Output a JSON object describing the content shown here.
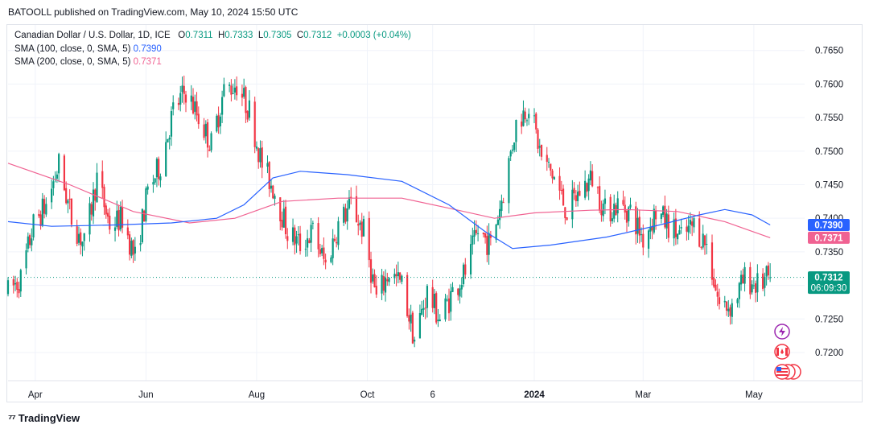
{
  "publisher": "BATOOLL published on TradingView.com, May 10, 2024 15:50 UTC",
  "legend": {
    "symbol": "Canadian Dollar / U.S. Dollar, 1D, ICE",
    "o_label": "O",
    "o": "0.7311",
    "h_label": "H",
    "h": "0.7333",
    "l_label": "L",
    "l": "0.7305",
    "c_label": "C",
    "c": "0.7312",
    "change": "+0.0003 (+0.04%)",
    "sma100_label": "SMA (100, close, 0, SMA, 5)",
    "sma100_value": "0.7390",
    "sma200_label": "SMA (200, close, 0, SMA, 5)",
    "sma200_value": "0.7371"
  },
  "footer": {
    "brand": "TradingView"
  },
  "colors": {
    "up": "#089981",
    "down": "#f23645",
    "sma100": "#2962ff",
    "sma200": "#f06292"
  },
  "chart_data": {
    "type": "candlestick",
    "y_ticks": [
      0.765,
      0.76,
      0.755,
      0.75,
      0.745,
      0.74,
      0.735,
      0.73,
      0.725,
      0.72
    ],
    "y_tick_labels": [
      "0.7650",
      "0.7600",
      "0.7550",
      "0.7500",
      "0.7450",
      "0.7400",
      "0.7350",
      "0.7300",
      "0.7250",
      "0.7200"
    ],
    "ylim": [
      0.7158,
      0.7688
    ],
    "x_ticks": [
      "Apr",
      "Jun",
      "Aug",
      "Oct",
      "6",
      "2024",
      "Mar",
      "May"
    ],
    "x_tick_dates": [
      "2023-04-01",
      "2023-06-01",
      "2023-08-01",
      "2023-10-01",
      "2023-11-06",
      "2024-01-01",
      "2024-03-01",
      "2024-05-01"
    ],
    "xlim": [
      "2023-03-17",
      "2024-05-29"
    ],
    "last_price": {
      "value": 0.7312,
      "label": "0.7312",
      "countdown": "06:09:30"
    },
    "sma100_last": {
      "value": 0.739,
      "label": "0.7390"
    },
    "sma200_last": {
      "value": 0.7371,
      "label": "0.7371"
    },
    "price_path": [
      [
        "2023-03-17",
        0.729
      ],
      [
        "2023-03-24",
        0.731
      ],
      [
        "2023-03-31",
        0.739
      ],
      [
        "2023-04-07",
        0.742
      ],
      [
        "2023-04-14",
        0.748
      ],
      [
        "2023-04-21",
        0.74
      ],
      [
        "2023-04-28",
        0.736
      ],
      [
        "2023-05-05",
        0.746
      ],
      [
        "2023-05-12",
        0.739
      ],
      [
        "2023-05-19",
        0.74
      ],
      [
        "2023-05-26",
        0.734
      ],
      [
        "2023-06-02",
        0.744
      ],
      [
        "2023-06-09",
        0.748
      ],
      [
        "2023-06-16",
        0.756
      ],
      [
        "2023-06-23",
        0.759
      ],
      [
        "2023-06-30",
        0.755
      ],
      [
        "2023-07-07",
        0.751
      ],
      [
        "2023-07-14",
        0.759
      ],
      [
        "2023-07-21",
        0.76
      ],
      [
        "2023-07-28",
        0.756
      ],
      [
        "2023-08-04",
        0.748
      ],
      [
        "2023-08-11",
        0.744
      ],
      [
        "2023-08-18",
        0.738
      ],
      [
        "2023-08-25",
        0.736
      ],
      [
        "2023-09-01",
        0.738
      ],
      [
        "2023-09-08",
        0.733
      ],
      [
        "2023-09-15",
        0.739
      ],
      [
        "2023-09-22",
        0.742
      ],
      [
        "2023-09-29",
        0.738
      ],
      [
        "2023-10-06",
        0.728
      ],
      [
        "2023-10-13",
        0.732
      ],
      [
        "2023-10-20",
        0.73
      ],
      [
        "2023-10-27",
        0.722
      ],
      [
        "2023-11-03",
        0.729
      ],
      [
        "2023-11-10",
        0.725
      ],
      [
        "2023-11-17",
        0.729
      ],
      [
        "2023-11-24",
        0.732
      ],
      [
        "2023-12-01",
        0.738
      ],
      [
        "2023-12-08",
        0.736
      ],
      [
        "2023-12-15",
        0.744
      ],
      [
        "2023-12-22",
        0.754
      ],
      [
        "2023-12-29",
        0.757
      ],
      [
        "2024-01-05",
        0.749
      ],
      [
        "2024-01-12",
        0.746
      ],
      [
        "2024-01-19",
        0.741
      ],
      [
        "2024-01-26",
        0.744
      ],
      [
        "2024-02-02",
        0.746
      ],
      [
        "2024-02-09",
        0.741
      ],
      [
        "2024-02-16",
        0.742
      ],
      [
        "2024-02-23",
        0.741
      ],
      [
        "2024-03-01",
        0.737
      ],
      [
        "2024-03-08",
        0.741
      ],
      [
        "2024-03-15",
        0.739
      ],
      [
        "2024-03-22",
        0.737
      ],
      [
        "2024-03-29",
        0.739
      ],
      [
        "2024-04-05",
        0.736
      ],
      [
        "2024-04-12",
        0.727
      ],
      [
        "2024-04-19",
        0.727
      ],
      [
        "2024-04-26",
        0.731
      ],
      [
        "2024-05-03",
        0.73
      ],
      [
        "2024-05-10",
        0.7312
      ]
    ],
    "sma100_path": [
      [
        "2023-03-17",
        0.7395
      ],
      [
        "2023-04-10",
        0.7388
      ],
      [
        "2023-05-15",
        0.739
      ],
      [
        "2023-06-15",
        0.7393
      ],
      [
        "2023-07-10",
        0.74
      ],
      [
        "2023-07-25",
        0.742
      ],
      [
        "2023-08-10",
        0.746
      ],
      [
        "2023-08-25",
        0.747
      ],
      [
        "2023-09-20",
        0.7465
      ],
      [
        "2023-10-20",
        0.7455
      ],
      [
        "2023-11-15",
        0.742
      ],
      [
        "2023-12-05",
        0.738
      ],
      [
        "2023-12-20",
        0.7355
      ],
      [
        "2024-01-10",
        0.736
      ],
      [
        "2024-02-10",
        0.7372
      ],
      [
        "2024-02-20",
        0.7378
      ],
      [
        "2024-03-10",
        0.739
      ],
      [
        "2024-04-01",
        0.7405
      ],
      [
        "2024-04-15",
        0.7413
      ],
      [
        "2024-04-30",
        0.7405
      ],
      [
        "2024-05-10",
        0.739
      ]
    ],
    "sma200_path": [
      [
        "2023-03-17",
        0.7482
      ],
      [
        "2023-04-20",
        0.745
      ],
      [
        "2023-05-25",
        0.741
      ],
      [
        "2023-06-25",
        0.7393
      ],
      [
        "2023-07-20",
        0.74
      ],
      [
        "2023-08-15",
        0.7425
      ],
      [
        "2023-09-15",
        0.743
      ],
      [
        "2023-10-20",
        0.743
      ],
      [
        "2023-11-15",
        0.7415
      ],
      [
        "2023-12-10",
        0.74
      ],
      [
        "2024-01-01",
        0.7408
      ],
      [
        "2024-02-01",
        0.7412
      ],
      [
        "2024-02-20",
        0.7413
      ],
      [
        "2024-03-20",
        0.741
      ],
      [
        "2024-04-15",
        0.7395
      ],
      [
        "2024-05-10",
        0.7371
      ]
    ]
  }
}
